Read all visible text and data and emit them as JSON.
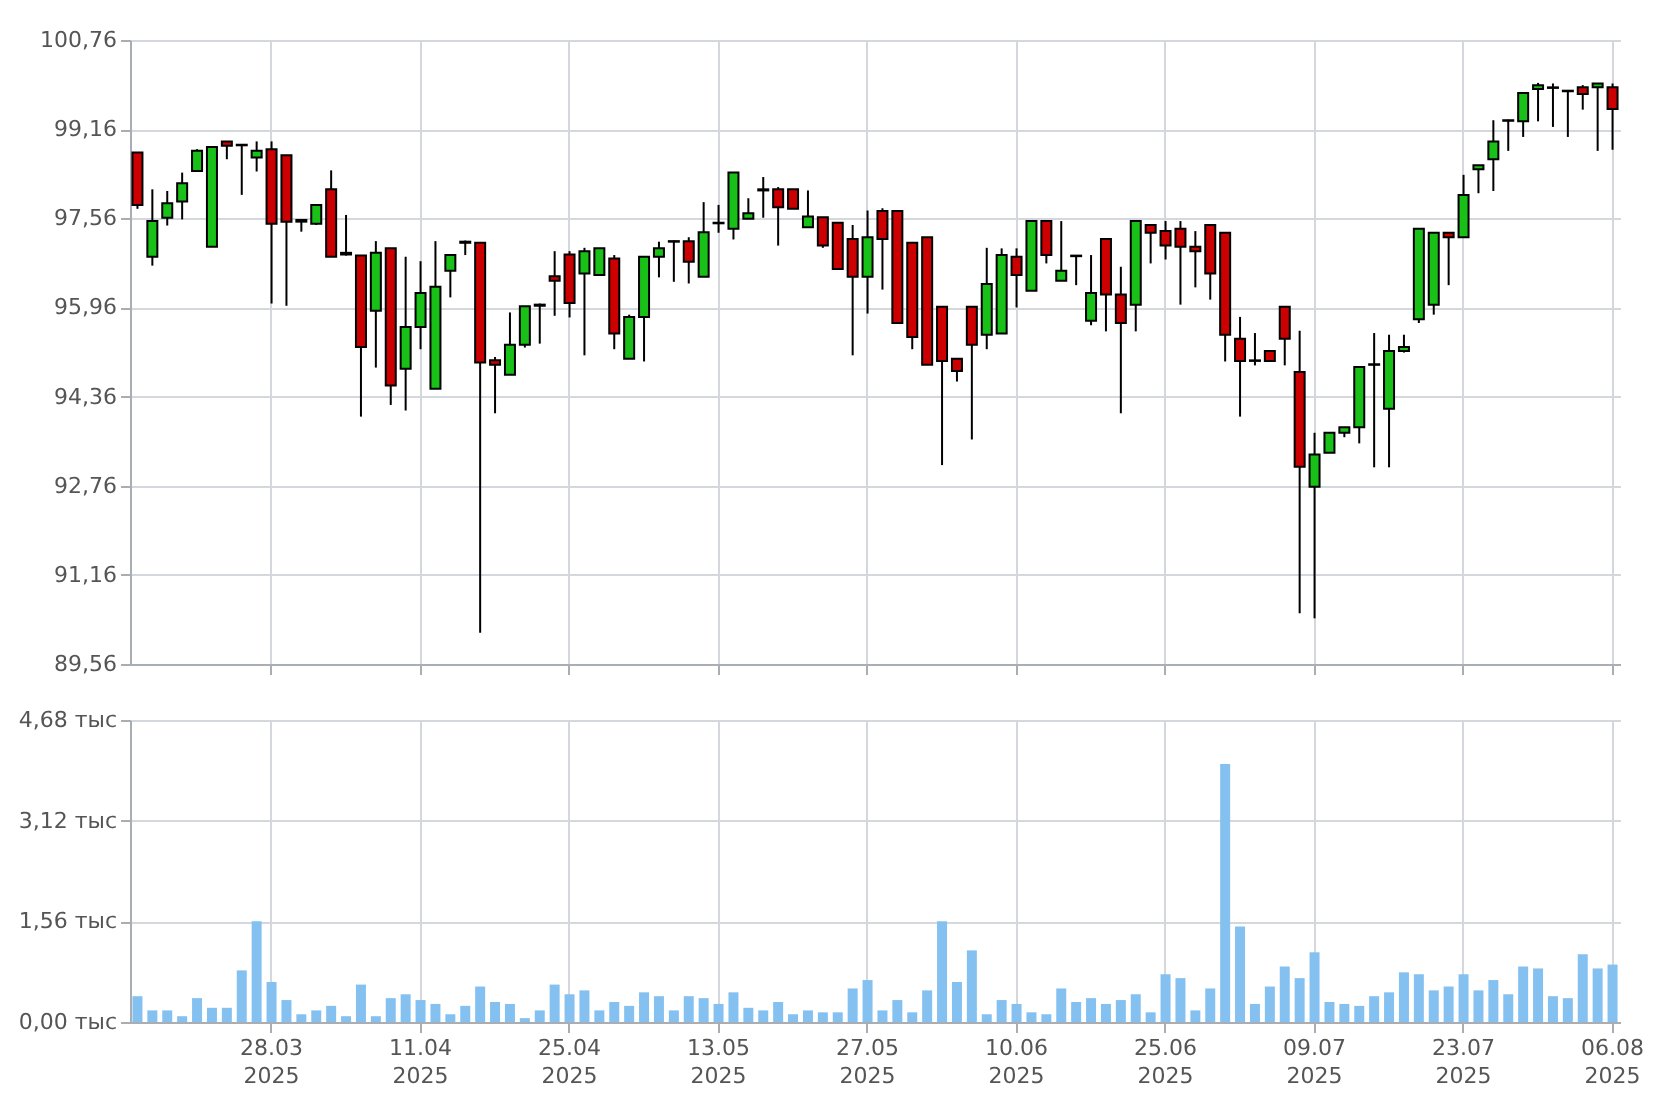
{
  "chart_data": [
    {
      "type": "candlestick",
      "tick_labels": "y",
      "grid": true,
      "categories": [
        null,
        null,
        null,
        null,
        null,
        null,
        null,
        null,
        null,
        null,
        null,
        null,
        null,
        null,
        null,
        null,
        null,
        null,
        null,
        null,
        null,
        null,
        null,
        null,
        null,
        null,
        null,
        null,
        null,
        null,
        null,
        null,
        null,
        null,
        null,
        null,
        null,
        null,
        null,
        null,
        null,
        null,
        null,
        null,
        null,
        null,
        null,
        null,
        null,
        null,
        null,
        null,
        null,
        null,
        null,
        null,
        null,
        null,
        null,
        null,
        null,
        null,
        null,
        null,
        null,
        null,
        null,
        null,
        null,
        null,
        null,
        null,
        null,
        null,
        null,
        null,
        null,
        null,
        null,
        null,
        null,
        null,
        null,
        null,
        null,
        null,
        null,
        null,
        null,
        null,
        null,
        null,
        null,
        null,
        null,
        null,
        null,
        null,
        null,
        null
      ],
      "ylim": [
        89.56,
        100.76
      ],
      "yticks": [
        {
          "value": 89.56,
          "label": "89,56"
        },
        {
          "value": 91.16,
          "label": "91,16"
        },
        {
          "value": 92.76,
          "label": "92,76"
        },
        {
          "value": 94.36,
          "label": "94,36"
        },
        {
          "value": 95.96,
          "label": "95,96"
        },
        {
          "value": 97.56,
          "label": "97,56"
        },
        {
          "value": 99.16,
          "label": "99,16"
        },
        {
          "value": 100.76,
          "label": "100,76"
        }
      ],
      "ohlc": [
        [
          98.74,
          98.74,
          97.73,
          97.8
        ],
        [
          96.87,
          98.08,
          96.71,
          97.51
        ],
        [
          97.57,
          98.05,
          97.43,
          97.83
        ],
        [
          97.86,
          98.38,
          97.54,
          98.19
        ],
        [
          98.41,
          98.8,
          98.41,
          98.77
        ],
        [
          97.05,
          98.84,
          97.05,
          98.84
        ],
        [
          98.94,
          98.94,
          98.62,
          98.86
        ],
        [
          98.88,
          98.88,
          97.98,
          98.87
        ],
        [
          98.65,
          98.94,
          98.4,
          98.77
        ],
        [
          98.8,
          98.94,
          96.03,
          97.46
        ],
        [
          98.69,
          98.69,
          95.99,
          97.5
        ],
        [
          97.53,
          97.53,
          97.32,
          97.5
        ],
        [
          97.46,
          97.8,
          97.44,
          97.8
        ],
        [
          98.08,
          98.42,
          96.87,
          96.87
        ],
        [
          96.94,
          97.62,
          96.89,
          96.91
        ],
        [
          96.89,
          96.89,
          94.0,
          95.25
        ],
        [
          95.9,
          97.15,
          94.88,
          96.94
        ],
        [
          97.02,
          97.02,
          94.21,
          94.56
        ],
        [
          94.86,
          96.87,
          94.11,
          95.61
        ],
        [
          95.61,
          96.79,
          95.21,
          96.22
        ],
        [
          94.5,
          97.15,
          94.5,
          96.33
        ],
        [
          96.62,
          96.9,
          96.14,
          96.9
        ],
        [
          97.14,
          97.16,
          96.9,
          97.12
        ],
        [
          97.12,
          97.12,
          90.12,
          94.97
        ],
        [
          95.01,
          95.07,
          94.06,
          94.93
        ],
        [
          94.75,
          95.87,
          94.75,
          95.29
        ],
        [
          95.29,
          95.98,
          95.24,
          95.98
        ],
        [
          95.99,
          96.03,
          95.31,
          96.01
        ],
        [
          96.52,
          96.97,
          95.81,
          96.44
        ],
        [
          96.91,
          96.97,
          95.78,
          96.04
        ],
        [
          96.57,
          97.03,
          95.1,
          96.97
        ],
        [
          96.54,
          97.02,
          96.54,
          97.02
        ],
        [
          96.84,
          96.9,
          95.21,
          95.49
        ],
        [
          95.04,
          95.83,
          95.04,
          95.79
        ],
        [
          95.79,
          96.87,
          94.99,
          96.87
        ],
        [
          96.87,
          97.14,
          96.5,
          97.02
        ],
        [
          97.15,
          97.16,
          96.42,
          97.14
        ],
        [
          97.15,
          97.22,
          96.39,
          96.78
        ],
        [
          96.51,
          97.85,
          96.51,
          97.31
        ],
        [
          97.48,
          97.8,
          97.3,
          97.47
        ],
        [
          97.37,
          98.38,
          97.18,
          98.38
        ],
        [
          97.55,
          97.92,
          97.55,
          97.65
        ],
        [
          98.08,
          98.3,
          97.57,
          98.06
        ],
        [
          98.08,
          98.12,
          97.07,
          97.76
        ],
        [
          98.08,
          98.08,
          97.73,
          97.73
        ],
        [
          97.4,
          98.06,
          97.4,
          97.59
        ],
        [
          97.58,
          97.58,
          97.03,
          97.07
        ],
        [
          97.48,
          97.48,
          96.65,
          96.65
        ],
        [
          97.19,
          97.44,
          95.1,
          96.51
        ],
        [
          96.51,
          97.7,
          95.85,
          97.22
        ],
        [
          97.69,
          97.74,
          96.28,
          97.19
        ],
        [
          97.69,
          97.69,
          95.68,
          95.68
        ],
        [
          97.12,
          97.12,
          95.21,
          95.43
        ],
        [
          97.22,
          97.22,
          94.93,
          94.93
        ],
        [
          95.97,
          95.97,
          93.13,
          95.0
        ],
        [
          95.04,
          95.04,
          94.63,
          94.82
        ],
        [
          95.97,
          95.97,
          93.59,
          95.29
        ],
        [
          95.47,
          97.03,
          95.21,
          96.38
        ],
        [
          95.49,
          97.02,
          95.49,
          96.9
        ],
        [
          96.87,
          97.02,
          95.96,
          96.54
        ],
        [
          96.26,
          97.51,
          96.26,
          97.51
        ],
        [
          97.51,
          97.51,
          96.75,
          96.9
        ],
        [
          96.44,
          97.51,
          96.44,
          96.62
        ],
        [
          96.89,
          96.9,
          96.36,
          96.88
        ],
        [
          95.72,
          96.9,
          95.64,
          96.22
        ],
        [
          97.19,
          97.19,
          95.53,
          96.19
        ],
        [
          96.19,
          96.69,
          94.06,
          95.68
        ],
        [
          96.01,
          97.51,
          95.53,
          97.51
        ],
        [
          97.44,
          97.44,
          96.75,
          97.3
        ],
        [
          97.33,
          97.51,
          96.82,
          97.07
        ],
        [
          97.37,
          97.51,
          96.01,
          97.05
        ],
        [
          97.05,
          97.33,
          96.32,
          96.97
        ],
        [
          97.44,
          97.44,
          96.1,
          96.57
        ],
        [
          97.3,
          97.3,
          94.99,
          95.47
        ],
        [
          95.4,
          95.79,
          94.0,
          95.0
        ],
        [
          95.01,
          95.5,
          94.92,
          95.0
        ],
        [
          95.18,
          95.18,
          95.0,
          95.0
        ],
        [
          95.97,
          95.97,
          94.92,
          95.4
        ],
        [
          94.8,
          95.54,
          90.47,
          93.1
        ],
        [
          92.74,
          93.71,
          90.38,
          93.32
        ],
        [
          93.35,
          93.71,
          93.35,
          93.71
        ],
        [
          93.71,
          93.81,
          93.63,
          93.81
        ],
        [
          93.81,
          94.89,
          93.52,
          94.89
        ],
        [
          94.93,
          95.5,
          93.09,
          94.94
        ],
        [
          94.14,
          95.47,
          93.09,
          95.18
        ],
        [
          95.18,
          95.47,
          95.15,
          95.25
        ],
        [
          95.75,
          97.37,
          95.68,
          97.37
        ],
        [
          96.01,
          97.3,
          95.83,
          97.3
        ],
        [
          97.3,
          97.3,
          96.36,
          97.22
        ],
        [
          97.22,
          98.34,
          97.22,
          97.98
        ],
        [
          98.44,
          98.51,
          98.01,
          98.51
        ],
        [
          98.62,
          99.32,
          98.05,
          98.94
        ],
        [
          99.31,
          99.33,
          98.77,
          99.32
        ],
        [
          99.3,
          99.81,
          99.02,
          99.81
        ],
        [
          99.88,
          99.99,
          99.3,
          99.95
        ],
        [
          99.9,
          99.98,
          99.2,
          99.91
        ],
        [
          99.85,
          99.85,
          99.02,
          99.84
        ],
        [
          99.91,
          99.95,
          99.51,
          99.79
        ],
        [
          99.91,
          99.98,
          98.77,
          99.98
        ],
        [
          99.91,
          99.98,
          98.79,
          99.52
        ]
      ],
      "colors": [
        "#cc0000",
        "#18c018",
        "#18c018",
        "#18c018",
        "#18c018",
        "#18c018",
        "#cc0000",
        "#cc0000",
        "#18c018",
        "#cc0000",
        "#cc0000",
        "#cc0000",
        "#18c018",
        "#cc0000",
        "#cc0000",
        "#cc0000",
        "#18c018",
        "#cc0000",
        "#18c018",
        "#18c018",
        "#18c018",
        "#18c018",
        "#cc0000",
        "#cc0000",
        "#cc0000",
        "#18c018",
        "#18c018",
        "#18c018",
        "#cc0000",
        "#cc0000",
        "#18c018",
        "#18c018",
        "#cc0000",
        "#18c018",
        "#18c018",
        "#18c018",
        "#cc0000",
        "#cc0000",
        "#18c018",
        "#cc0000",
        "#18c018",
        "#18c018",
        "#cc0000",
        "#cc0000",
        "#cc0000",
        "#18c018",
        "#cc0000",
        "#cc0000",
        "#cc0000",
        "#18c018",
        "#cc0000",
        "#cc0000",
        "#cc0000",
        "#cc0000",
        "#cc0000",
        "#cc0000",
        "#cc0000",
        "#18c018",
        "#18c018",
        "#cc0000",
        "#18c018",
        "#cc0000",
        "#18c018",
        "#cc0000",
        "#18c018",
        "#cc0000",
        "#cc0000",
        "#18c018",
        "#cc0000",
        "#cc0000",
        "#cc0000",
        "#cc0000",
        "#cc0000",
        "#cc0000",
        "#cc0000",
        "#cc0000",
        "#cc0000",
        "#cc0000",
        "#cc0000",
        "#18c018",
        "#18c018",
        "#18c018",
        "#18c018",
        "#18c018",
        "#18c018",
        "#18c018",
        "#18c018",
        "#18c018",
        "#cc0000",
        "#18c018",
        "#18c018",
        "#18c018",
        "#18c018",
        "#18c018",
        "#18c018",
        "#18c018",
        "#cc0000",
        "#cc0000",
        "#18c018",
        "#cc0000"
      ]
    },
    {
      "type": "bar",
      "grid": true,
      "color": "#85c1f0",
      "categories": [
        null,
        null,
        null,
        null,
        null,
        null,
        null,
        null,
        null,
        "28.03\n2025",
        null,
        null,
        null,
        null,
        null,
        null,
        null,
        null,
        null,
        "11.04\n2025",
        null,
        null,
        null,
        null,
        null,
        null,
        null,
        null,
        null,
        "25.04\n2025",
        null,
        null,
        null,
        null,
        null,
        null,
        null,
        null,
        null,
        "13.05\n2025",
        null,
        null,
        null,
        null,
        null,
        null,
        null,
        null,
        null,
        "27.05\n2025",
        null,
        null,
        null,
        null,
        null,
        null,
        null,
        null,
        null,
        "10.06\n2025",
        null,
        null,
        null,
        null,
        null,
        null,
        null,
        null,
        null,
        "25.06\n2025",
        null,
        null,
        null,
        null,
        null,
        null,
        null,
        null,
        null,
        "09.07\n2025",
        null,
        null,
        null,
        null,
        null,
        null,
        null,
        null,
        null,
        "23.07\n2025",
        null,
        null,
        null,
        null,
        null,
        null,
        null,
        null,
        null,
        "06.08\n2025"
      ],
      "ylim": [
        0,
        4.68
      ],
      "yticks": [
        {
          "value": 0,
          "label": "0,00 тыс"
        },
        {
          "value": 1.56,
          "label": "1,56 тыс"
        },
        {
          "value": 3.12,
          "label": "3,12 тыс"
        },
        {
          "value": 4.68,
          "label": "4,68 тыс"
        }
      ],
      "values": [
        0.4,
        0.18,
        0.18,
        0.09,
        0.37,
        0.22,
        0.22,
        0.8,
        1.56,
        0.62,
        0.34,
        0.12,
        0.18,
        0.25,
        0.09,
        0.58,
        0.09,
        0.37,
        0.43,
        0.34,
        0.28,
        0.12,
        0.25,
        0.55,
        0.31,
        0.28,
        0.06,
        0.18,
        0.58,
        0.43,
        0.49,
        0.18,
        0.31,
        0.25,
        0.46,
        0.4,
        0.18,
        0.4,
        0.37,
        0.28,
        0.46,
        0.22,
        0.18,
        0.31,
        0.12,
        0.18,
        0.15,
        0.15,
        0.52,
        0.65,
        0.18,
        0.34,
        0.15,
        0.49,
        1.56,
        0.62,
        1.11,
        0.12,
        0.34,
        0.28,
        0.15,
        0.12,
        0.52,
        0.31,
        0.37,
        0.28,
        0.34,
        0.43,
        0.15,
        0.74,
        0.68,
        0.18,
        0.52,
        4.0,
        1.48,
        0.28,
        0.55,
        0.86,
        0.68,
        1.08,
        0.31,
        0.28,
        0.25,
        0.4,
        0.46,
        0.77,
        0.74,
        0.49,
        0.55,
        0.74,
        0.49,
        0.65,
        0.43,
        0.86,
        0.83,
        0.4,
        0.37,
        1.05,
        0.83,
        0.89
      ]
    }
  ]
}
